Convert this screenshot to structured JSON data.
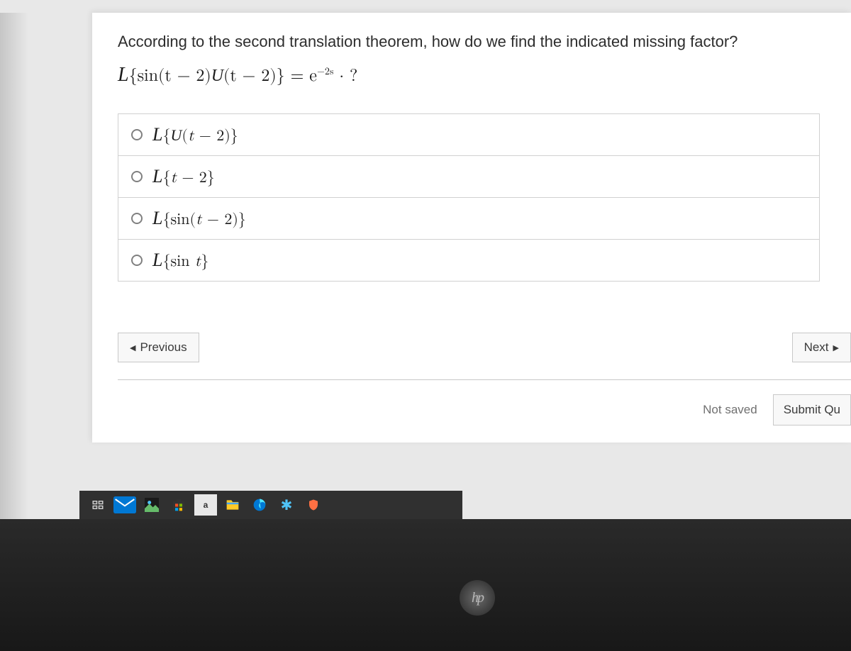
{
  "question": {
    "prompt": "According to the second translation theorem, how do we find the indicated missing factor?",
    "equation_html": "<span class='script-L'>L</span>{sin(<span class='ital'>t</span> − 2)<span class='cal-U'>U</span>(<span class='ital'>t</span> − 2)} = <span class='ital'>e</span><sup>−2<span class='ital'>s</span></sup> · ?"
  },
  "options": [
    {
      "html": "<span class='script-L'>L</span>{<span class='cal-U'>U</span>(<span class='ital'>t</span> − 2)}"
    },
    {
      "html": "<span class='script-L'>L</span>{<span class='ital'>t</span> − 2}"
    },
    {
      "html": "<span class='script-L'>L</span>{sin(<span class='ital'>t</span> − 2)}"
    },
    {
      "html": "<span class='script-L'>L</span>{sin <span class='ital'>t</span>}"
    }
  ],
  "nav": {
    "prev_label": "Previous",
    "next_label": "Next"
  },
  "footer": {
    "status": "Not saved",
    "submit_label": "Submit Qu"
  },
  "taskbar": {
    "items": [
      "task-view",
      "mail",
      "store",
      "ms-store",
      "amazon",
      "file-explorer",
      "edge",
      "settings-gear",
      "notes"
    ]
  },
  "laptop_brand": "hp",
  "colors": {
    "page_bg": "#ffffff",
    "body_bg": "#e8e8e8",
    "text": "#2d2d2d",
    "border": "#d0d0d0",
    "btn_bg": "#f8f8f8",
    "btn_border": "#c8c8c8",
    "muted": "#707070",
    "taskbar_bg": "rgba(32,32,32,0.92)"
  }
}
